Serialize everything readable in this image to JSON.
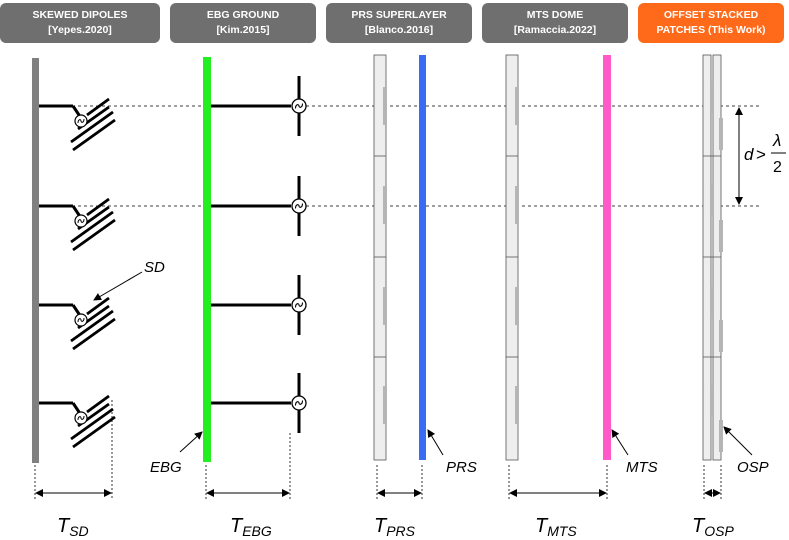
{
  "headers": [
    {
      "line1": "SKEWED DIPOLES",
      "line2": "[Yepes.2020]",
      "color": "#6f6f6f"
    },
    {
      "line1": "EBG GROUND",
      "line2": "[Kim.2015]",
      "color": "#6f6f6f"
    },
    {
      "line1": "PRS SUPERLAYER",
      "line2": "[Blanco.2016]",
      "color": "#6f6f6f"
    },
    {
      "line1": "MTS DOME",
      "line2": "[Ramaccia.2022]",
      "color": "#6f6f6f"
    },
    {
      "line1": "OFFSET STACKED",
      "line2": "PATCHES (This Work)",
      "color": "#ff6a1a"
    }
  ],
  "labels": {
    "sd": "SD",
    "ebg": "EBG",
    "prs": "PRS",
    "mts": "MTS",
    "osp": "OSP"
  },
  "thickness": [
    {
      "main": "T",
      "sub": "SD"
    },
    {
      "main": "T",
      "sub": "EBG"
    },
    {
      "main": "T",
      "sub": "PRS"
    },
    {
      "main": "T",
      "sub": "MTS"
    },
    {
      "main": "T",
      "sub": "OSP"
    }
  ],
  "spacing": {
    "d": "d",
    "gt": ">",
    "lambda": "λ",
    "two": "2"
  },
  "colors": {
    "ground": "#808080",
    "ebg": "#22ee22",
    "prs": "#3a6cf2",
    "mts": "#ff5ac8",
    "panel": "#eeeeee",
    "patch": "#b5b5b5"
  }
}
